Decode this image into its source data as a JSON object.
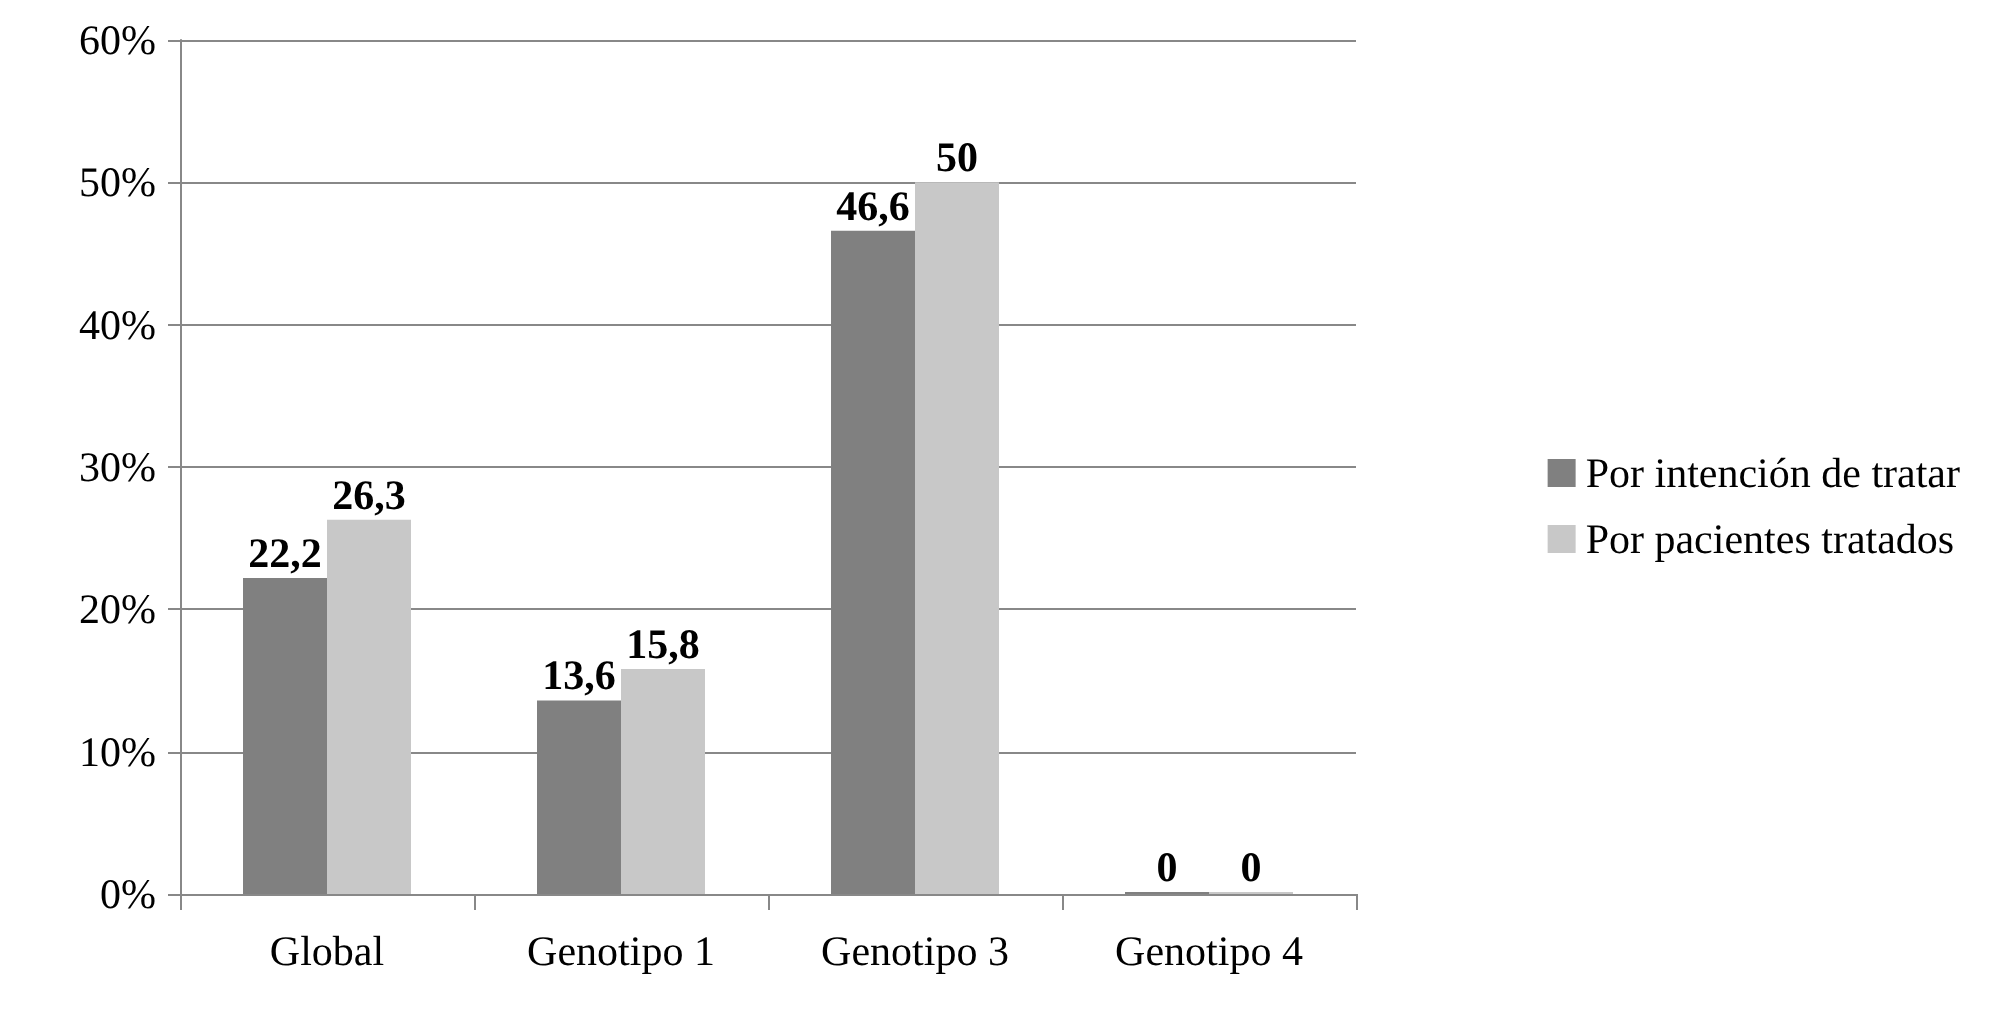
{
  "chart_data": {
    "type": "bar",
    "categories": [
      "Global",
      "Genotipo 1",
      "Genotipo 3",
      "Genotipo 4"
    ],
    "series": [
      {
        "name": "Por intención de tratar",
        "color": "#808080",
        "values": [
          22.2,
          13.6,
          46.6,
          0
        ],
        "value_labels": [
          "22,2",
          "13,6",
          "46,6",
          "0"
        ]
      },
      {
        "name": "Por pacientes tratados",
        "color": "#c8c8c8",
        "values": [
          26.3,
          15.8,
          50,
          0
        ],
        "value_labels": [
          "26,3",
          "15,8",
          "50",
          "0"
        ]
      }
    ],
    "ylim": [
      0,
      60
    ],
    "yticks": [
      {
        "value": 0,
        "label": "0%"
      },
      {
        "value": 10,
        "label": "10%"
      },
      {
        "value": 20,
        "label": "20%"
      },
      {
        "value": 30,
        "label": "30%"
      },
      {
        "value": 40,
        "label": "40%"
      },
      {
        "value": 50,
        "label": "50%"
      },
      {
        "value": 60,
        "label": "60%"
      }
    ],
    "grid": "y",
    "legend": "right"
  }
}
